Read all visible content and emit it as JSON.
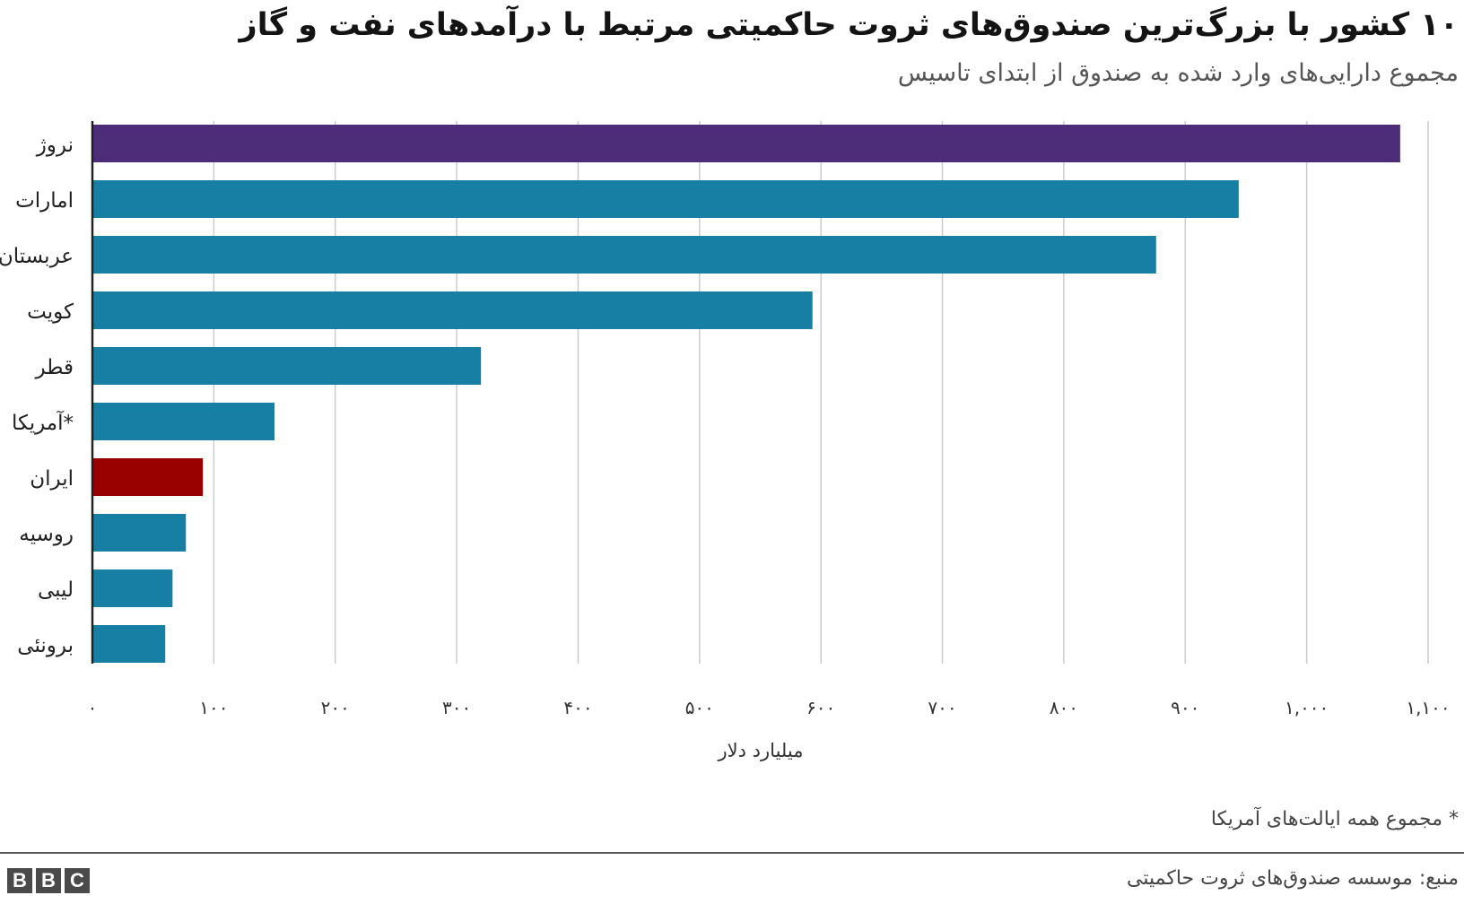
{
  "header": {
    "title": "۱۰ کشور با بزرگ‌ترین صندوق‌های ثروت حاکمیتی مرتبط با درآمدهای نفت و گاز",
    "subtitle": "مجموع دارایی‌های وارد شده به صندوق از ابتدای تاسیس"
  },
  "chart_data": {
    "type": "bar",
    "orientation": "horizontal",
    "categories": [
      "نروژ",
      "امارات",
      "عربستان",
      "کویت",
      "قطر",
      "آمریکا*",
      "ایران",
      "روسیه",
      "لیبی",
      "برونئی"
    ],
    "values": [
      1077,
      944,
      876,
      593,
      320,
      150,
      91,
      77,
      66,
      60
    ],
    "colors": [
      "#4d2c7a",
      "#167fa3",
      "#167fa3",
      "#167fa3",
      "#167fa3",
      "#167fa3",
      "#990000",
      "#167fa3",
      "#167fa3",
      "#167fa3"
    ],
    "xlabel": "میلیارد دلار",
    "xlim": [
      0,
      1100
    ],
    "xticks": [
      0,
      100,
      200,
      300,
      400,
      500,
      600,
      700,
      800,
      900,
      1000,
      1100
    ],
    "xtick_labels": [
      "۰",
      "۱۰۰",
      "۲۰۰",
      "۳۰۰",
      "۴۰۰",
      "۵۰۰",
      "۶۰۰",
      "۷۰۰",
      "۸۰۰",
      "۹۰۰",
      "۱,۰۰۰",
      "۱,۱۰۰"
    ],
    "grid": "vertical"
  },
  "footer": {
    "footnote": "* مجموع همه ایالت‌های آمریکا",
    "source": "منبع: موسسه صندوق‌های ثروت حاکمیتی",
    "logo_letters": [
      "B",
      "B",
      "C"
    ]
  }
}
